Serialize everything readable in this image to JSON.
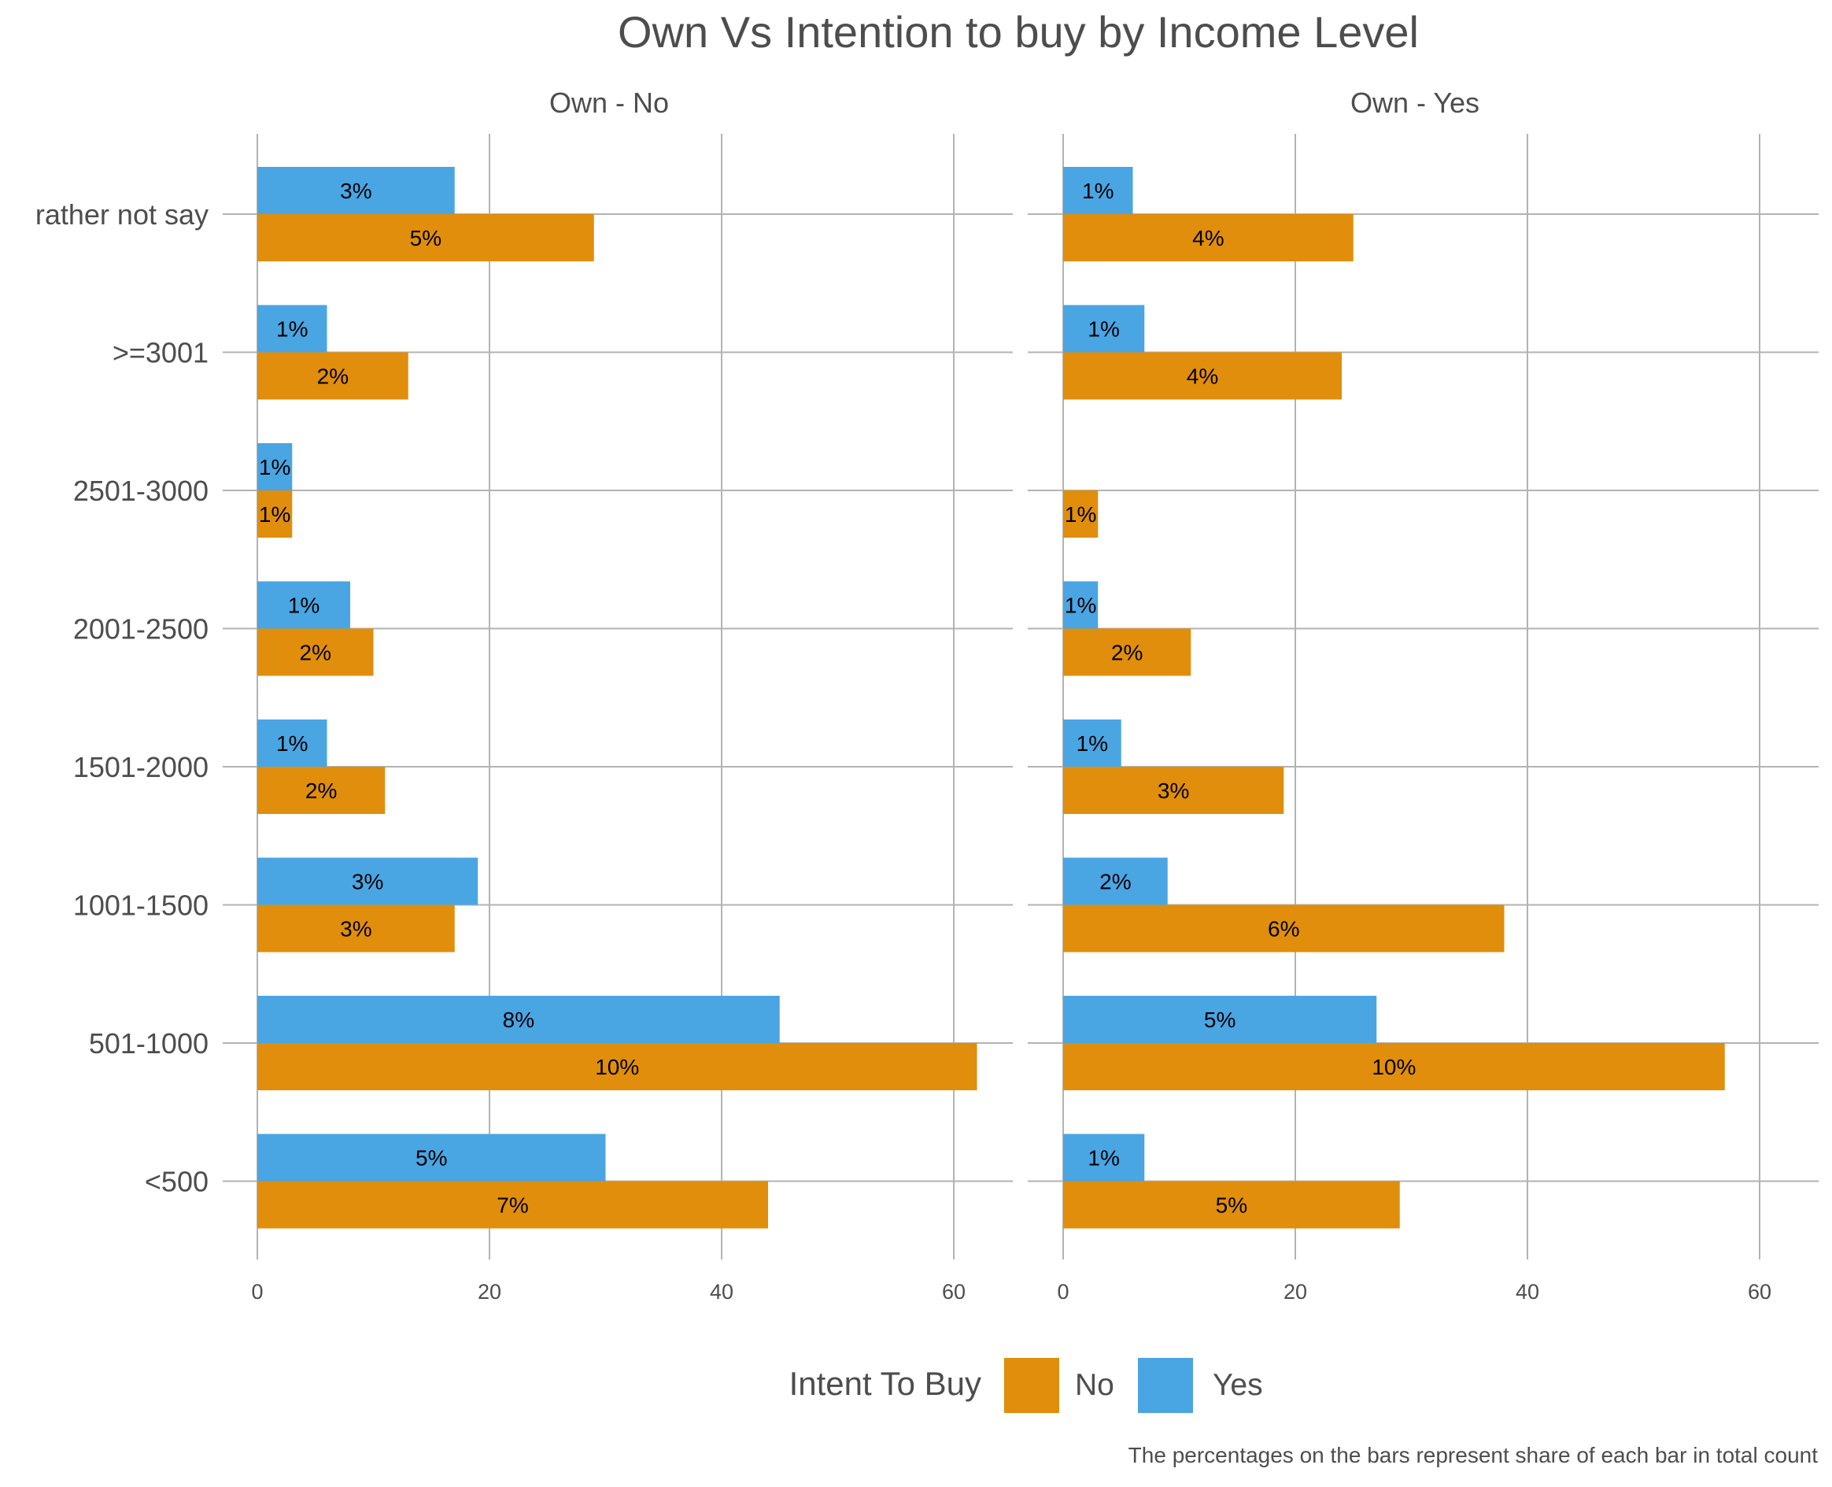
{
  "chart_data": {
    "type": "bar",
    "orientation": "horizontal",
    "title": "Own Vs Intention to buy by Income Level",
    "caption": "The percentages on the bars represent share of each bar in total count",
    "categories": [
      "rather not say",
      ">=3001",
      "2501-3000",
      "2001-2500",
      "1501-2000",
      "1001-1500",
      "501-1000",
      "<500"
    ],
    "xlim": [
      0,
      65
    ],
    "x_ticks": [
      0,
      20,
      40,
      60
    ],
    "grid": true,
    "legend": {
      "title": "Intent To Buy",
      "position": "bottom",
      "items": [
        {
          "label": "No",
          "color": "#E08E0B"
        },
        {
          "label": "Yes",
          "color": "#4AA5E3"
        }
      ]
    },
    "facets": [
      {
        "title": "Own - No",
        "series": [
          {
            "name": "Yes",
            "color": "#4AA5E3",
            "values": [
              17,
              6,
              3,
              8,
              6,
              19,
              45,
              30
            ],
            "labels": [
              "3%",
              "1%",
              "1%",
              "1%",
              "1%",
              "3%",
              "8%",
              "5%"
            ]
          },
          {
            "name": "No",
            "color": "#E08E0B",
            "values": [
              29,
              13,
              3,
              10,
              11,
              17,
              62,
              44
            ],
            "labels": [
              "5%",
              "2%",
              "1%",
              "2%",
              "2%",
              "3%",
              "10%",
              "7%"
            ]
          }
        ]
      },
      {
        "title": "Own - Yes",
        "series": [
          {
            "name": "Yes",
            "color": "#4AA5E3",
            "values": [
              6,
              7,
              0,
              3,
              5,
              9,
              27,
              7
            ],
            "labels": [
              "1%",
              "1%",
              "",
              "1%",
              "1%",
              "2%",
              "5%",
              "1%"
            ]
          },
          {
            "name": "No",
            "color": "#E08E0B",
            "values": [
              25,
              24,
              3,
              11,
              19,
              38,
              57,
              29
            ],
            "labels": [
              "4%",
              "4%",
              "1%",
              "2%",
              "3%",
              "6%",
              "10%",
              "5%"
            ]
          }
        ]
      }
    ]
  }
}
